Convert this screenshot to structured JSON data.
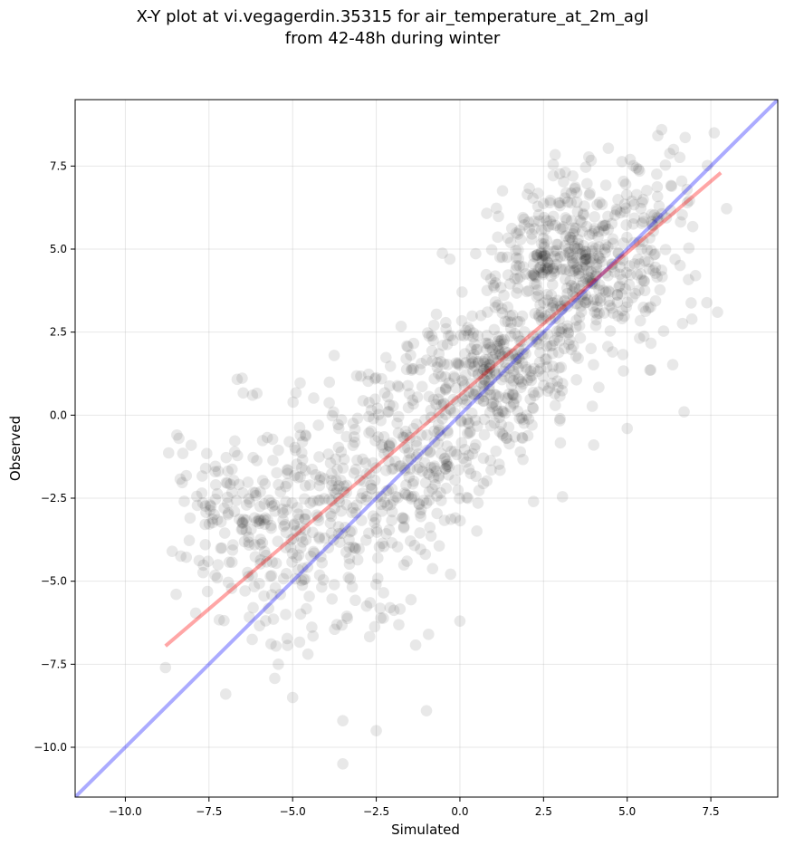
{
  "chart_data": {
    "type": "scatter",
    "title": [
      "X-Y plot at vi.vegagerdin.35315 for air_temperature_at_2m_agl",
      "from 42-48h during winter"
    ],
    "xlabel": "Simulated",
    "ylabel": "Observed",
    "xlim": [
      -11.5,
      9.5
    ],
    "ylim": [
      -11.5,
      9.5
    ],
    "xticks": [
      -10.0,
      -7.5,
      -5.0,
      -2.5,
      0.0,
      2.5,
      5.0,
      7.5
    ],
    "yticks": [
      -10.0,
      -7.5,
      -5.0,
      -2.5,
      0.0,
      2.5,
      5.0,
      7.5
    ],
    "xtick_labels": [
      "−10.0",
      "−7.5",
      "−5.0",
      "−2.5",
      "0.0",
      "2.5",
      "5.0",
      "7.5"
    ],
    "ytick_labels": [
      "−10.0",
      "−7.5",
      "−5.0",
      "−2.5",
      "0.0",
      "2.5",
      "5.0",
      "7.5"
    ],
    "grid": true,
    "point_color": "#000000",
    "point_alpha": 0.09,
    "approx_point_count": 1500,
    "identity_line": {
      "x": [
        -11.5,
        9.5
      ],
      "y": [
        -11.5,
        9.5
      ],
      "color": "#0000ff",
      "alpha": 0.33
    },
    "regression_line": {
      "x": [
        -8.8,
        7.8
      ],
      "y": [
        -6.95,
        7.3
      ],
      "color": "#ff0000",
      "alpha": 0.35
    },
    "point_clusters": [
      {
        "cx": 3.4,
        "cy": 4.6,
        "sx": 1.3,
        "sy": 1.3,
        "n": 460
      },
      {
        "cx": 1.0,
        "cy": 1.2,
        "sx": 1.2,
        "sy": 1.1,
        "n": 330
      },
      {
        "cx": -1.8,
        "cy": -1.4,
        "sx": 1.4,
        "sy": 1.5,
        "n": 260
      },
      {
        "cx": -4.2,
        "cy": -3.6,
        "sx": 1.5,
        "sy": 1.7,
        "n": 250
      },
      {
        "cx": -6.6,
        "cy": -3.0,
        "sx": 1.1,
        "sy": 1.6,
        "n": 120
      },
      {
        "cx": 5.8,
        "cy": 5.6,
        "sx": 1.1,
        "sy": 1.6,
        "n": 80
      }
    ],
    "outlier_points": [
      {
        "x": -3.5,
        "y": -10.5
      },
      {
        "x": -2.5,
        "y": -9.5
      },
      {
        "x": -3.5,
        "y": -9.2
      },
      {
        "x": -1.0,
        "y": -8.9
      },
      {
        "x": -8.8,
        "y": -7.6
      },
      {
        "x": -7.0,
        "y": -8.4
      },
      {
        "x": 6.7,
        "y": 0.1
      },
      {
        "x": 5.0,
        "y": -0.4
      },
      {
        "x": 7.7,
        "y": 3.1
      },
      {
        "x": -6.2,
        "y": 0.6
      },
      {
        "x": -7.6,
        "y": -1.6
      },
      {
        "x": -8.6,
        "y": -4.1
      },
      {
        "x": -0.3,
        "y": 4.7
      },
      {
        "x": 7.6,
        "y": 8.5
      },
      {
        "x": 2.2,
        "y": -2.6
      },
      {
        "x": 4.0,
        "y": -0.9
      },
      {
        "x": 0.0,
        "y": -6.2
      },
      {
        "x": -5.0,
        "y": -8.5
      }
    ]
  }
}
